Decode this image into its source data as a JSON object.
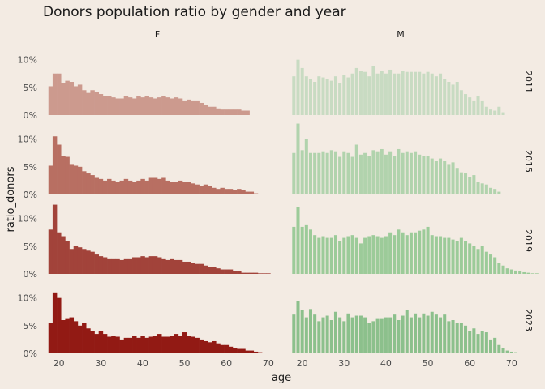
{
  "chart_data": {
    "type": "bar",
    "title": "Donors population ratio by gender and year",
    "xlabel": "age",
    "ylabel": "ratio_donors",
    "xlim": [
      16,
      71
    ],
    "ylim": [
      0,
      12
    ],
    "x_ticks": [
      20,
      30,
      40,
      50,
      60,
      70
    ],
    "x_tick_labels": [
      "20",
      "30",
      "40",
      "50",
      "60",
      "70"
    ],
    "y_ticks": [
      0,
      5,
      10
    ],
    "y_tick_labels": [
      "0%",
      "5%",
      "10%"
    ],
    "columns": [
      "F",
      "M"
    ],
    "rows": [
      "2011",
      "2015",
      "2019",
      "2023"
    ],
    "grid": false,
    "legend": "none",
    "colors": {
      "F-2011": "#cc9a8e",
      "F-2015": "#b86f62",
      "F-2019": "#a2433a",
      "F-2023": "#921a14",
      "M-2011": "#c8dbc2",
      "M-2015": "#b1d3ad",
      "M-2019": "#9ccb99",
      "M-2023": "#8cc08c"
    },
    "panels": [
      {
        "gender": "F",
        "year": "2011",
        "start_age": 18,
        "values": [
          5.2,
          7.5,
          7.5,
          5.8,
          6.2,
          6.0,
          5.2,
          5.5,
          4.5,
          4.0,
          4.5,
          4.2,
          3.8,
          3.5,
          3.5,
          3.2,
          3.0,
          3.0,
          3.5,
          3.2,
          3.0,
          3.5,
          3.2,
          3.5,
          3.2,
          3.0,
          3.2,
          3.5,
          3.2,
          3.0,
          3.2,
          3.0,
          2.5,
          2.8,
          2.5,
          2.5,
          2.2,
          1.8,
          1.5,
          1.5,
          1.2,
          1.0,
          1.0,
          1.0,
          1.0,
          1.0,
          0.8,
          0.8
        ]
      },
      {
        "gender": "F",
        "year": "2015",
        "start_age": 18,
        "values": [
          5.2,
          10.5,
          9.0,
          7.0,
          6.8,
          5.5,
          5.2,
          5.0,
          4.2,
          3.8,
          3.5,
          3.0,
          2.8,
          2.5,
          2.8,
          2.5,
          2.2,
          2.5,
          2.8,
          2.5,
          2.2,
          2.5,
          2.8,
          2.5,
          3.0,
          3.0,
          2.8,
          3.0,
          2.5,
          2.2,
          2.2,
          2.5,
          2.2,
          2.2,
          2.0,
          1.8,
          1.5,
          1.8,
          1.5,
          1.2,
          1.0,
          1.2,
          1.0,
          1.0,
          0.8,
          1.0,
          0.8,
          0.5,
          0.5,
          0.2
        ]
      },
      {
        "gender": "F",
        "year": "2019",
        "start_age": 18,
        "values": [
          8.0,
          12.5,
          7.5,
          6.8,
          6.0,
          4.5,
          5.0,
          4.8,
          4.5,
          4.2,
          4.0,
          3.5,
          3.2,
          3.0,
          2.8,
          2.8,
          2.8,
          2.5,
          2.8,
          2.8,
          3.0,
          3.0,
          3.2,
          3.0,
          3.2,
          3.2,
          3.0,
          2.8,
          2.5,
          2.8,
          2.5,
          2.5,
          2.2,
          2.2,
          2.0,
          1.8,
          1.8,
          1.5,
          1.2,
          1.2,
          1.0,
          0.8,
          0.8,
          0.8,
          0.5,
          0.5,
          0.2,
          0.2,
          0.2,
          0.2,
          0.1,
          0.1,
          0.1
        ]
      },
      {
        "gender": "F",
        "year": "2023",
        "start_age": 18,
        "values": [
          5.5,
          11.0,
          10.0,
          6.0,
          6.2,
          6.5,
          5.8,
          5.0,
          5.5,
          4.5,
          4.0,
          3.5,
          4.0,
          3.5,
          3.0,
          3.2,
          3.0,
          2.5,
          2.8,
          2.8,
          3.2,
          2.8,
          3.2,
          2.8,
          3.0,
          3.2,
          3.5,
          3.0,
          3.0,
          3.2,
          3.5,
          3.2,
          3.8,
          3.2,
          3.0,
          2.8,
          2.5,
          2.2,
          2.0,
          2.2,
          1.8,
          1.5,
          1.5,
          1.2,
          1.0,
          0.8,
          0.8,
          0.5,
          0.5,
          0.3,
          0.2,
          0.1,
          0.1,
          0.1
        ]
      },
      {
        "gender": "M",
        "year": "2011",
        "start_age": 18,
        "values": [
          7.0,
          10.0,
          8.5,
          7.0,
          6.5,
          6.0,
          7.0,
          6.8,
          6.5,
          6.2,
          7.0,
          5.8,
          7.2,
          6.8,
          7.5,
          8.5,
          8.0,
          7.8,
          7.0,
          8.8,
          7.5,
          8.0,
          7.5,
          8.2,
          7.5,
          7.5,
          8.0,
          7.8,
          7.8,
          7.8,
          7.8,
          7.5,
          7.8,
          7.5,
          7.0,
          7.5,
          6.5,
          6.0,
          5.5,
          6.0,
          4.5,
          3.8,
          3.2,
          2.5,
          3.5,
          2.5,
          1.5,
          1.0,
          0.8,
          1.5,
          0.5
        ]
      },
      {
        "gender": "M",
        "year": "2015",
        "start_age": 18,
        "values": [
          7.5,
          12.8,
          8.0,
          10.0,
          7.5,
          7.5,
          7.5,
          7.8,
          7.5,
          8.0,
          7.8,
          6.8,
          7.8,
          7.5,
          6.8,
          9.0,
          7.2,
          7.5,
          7.0,
          8.0,
          7.8,
          8.2,
          7.2,
          7.8,
          7.0,
          8.2,
          7.5,
          7.8,
          7.5,
          7.8,
          7.2,
          7.0,
          7.0,
          6.5,
          6.0,
          6.5,
          6.0,
          5.5,
          5.8,
          4.8,
          4.0,
          3.8,
          3.2,
          3.5,
          2.2,
          2.0,
          1.8,
          1.2,
          1.0,
          0.5
        ]
      },
      {
        "gender": "M",
        "year": "2019",
        "start_age": 18,
        "values": [
          8.5,
          12.0,
          8.5,
          8.8,
          8.0,
          7.0,
          6.5,
          6.8,
          6.5,
          6.5,
          7.0,
          6.0,
          6.5,
          6.8,
          7.0,
          6.5,
          5.5,
          6.5,
          6.8,
          7.0,
          6.8,
          6.5,
          6.8,
          7.5,
          7.0,
          8.0,
          7.5,
          7.0,
          7.5,
          7.5,
          7.8,
          8.0,
          8.5,
          7.0,
          6.8,
          6.8,
          6.5,
          6.5,
          6.2,
          6.0,
          6.5,
          6.0,
          5.5,
          5.0,
          4.5,
          5.0,
          4.0,
          3.5,
          3.0,
          2.0,
          1.5,
          1.0,
          0.8,
          0.6,
          0.5,
          0.3,
          0.2,
          0.1,
          0.1
        ]
      },
      {
        "gender": "M",
        "year": "2023",
        "start_age": 18,
        "values": [
          7.0,
          9.5,
          7.8,
          6.5,
          8.0,
          7.0,
          5.8,
          6.5,
          6.8,
          6.0,
          7.5,
          6.5,
          5.8,
          7.2,
          6.5,
          6.8,
          6.8,
          6.5,
          5.5,
          5.8,
          6.2,
          6.2,
          6.5,
          6.5,
          7.0,
          6.0,
          6.8,
          7.8,
          6.5,
          7.2,
          6.5,
          7.2,
          6.8,
          7.5,
          7.0,
          6.5,
          7.0,
          5.8,
          6.0,
          5.5,
          5.5,
          5.0,
          4.0,
          4.5,
          3.5,
          4.0,
          3.8,
          2.5,
          2.8,
          1.5,
          1.0,
          0.5,
          0.3,
          0.2,
          0.1
        ]
      }
    ]
  }
}
